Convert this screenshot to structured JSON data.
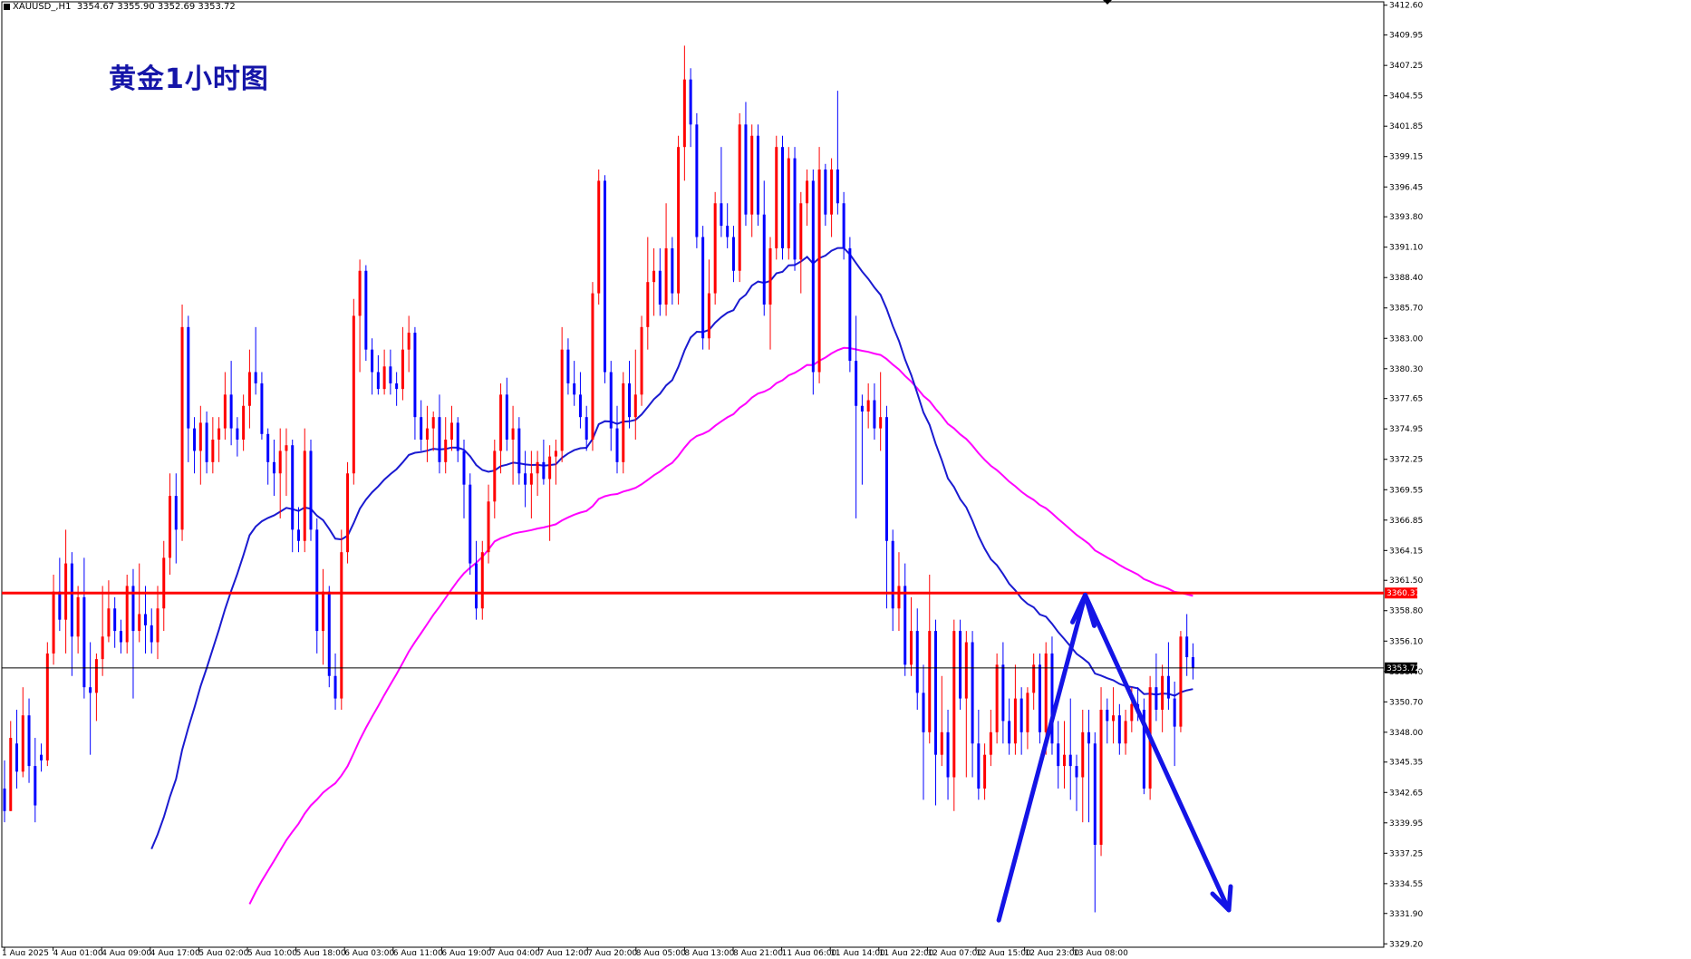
{
  "header": {
    "symbol": "XAUUSD_,H1",
    "ohlc": "3354.67 3355.90 3352.69 3353.72"
  },
  "annotation_title": "黄金1小时图",
  "colors": {
    "background": "#ffffff",
    "bull_candle": "#ff0000",
    "bear_candle": "#0000ff",
    "ma_fast": "#1a1ad0",
    "ma_slow": "#ff00ff",
    "resistance_line": "#ff0000",
    "current_price_line": "#000000",
    "arrow": "#1414e6",
    "resistance_tag": "#ff0000",
    "price_tag": "#000000"
  },
  "chart_data": {
    "type": "candlestick",
    "y_ticks": [
      "3412.60",
      "3409.95",
      "3407.25",
      "3404.55",
      "3401.85",
      "3399.15",
      "3396.45",
      "3393.80",
      "3391.10",
      "3388.40",
      "3385.70",
      "3383.00",
      "3380.30",
      "3377.65",
      "3374.95",
      "3372.25",
      "3369.55",
      "3366.85",
      "3364.15",
      "3361.50",
      "3358.80",
      "3356.10",
      "3353.40",
      "3350.70",
      "3348.00",
      "3345.35",
      "3342.65",
      "3339.95",
      "3337.25",
      "3334.55",
      "3331.90",
      "3329.20"
    ],
    "y_range": [
      3328.9,
      3412.9
    ],
    "x_labels": [
      "1 Aug 2025",
      "4 Aug 01:00",
      "4 Aug 09:00",
      "4 Aug 17:00",
      "5 Aug 02:00",
      "5 Aug 10:00",
      "5 Aug 18:00",
      "6 Aug 03:00",
      "6 Aug 11:00",
      "6 Aug 19:00",
      "7 Aug 04:00",
      "7 Aug 12:00",
      "7 Aug 20:00",
      "8 Aug 05:00",
      "8 Aug 13:00",
      "8 Aug 21:00",
      "11 Aug 06:00",
      "11 Aug 14:00",
      "11 Aug 22:00",
      "12 Aug 07:00",
      "12 Aug 15:00",
      "12 Aug 23:00",
      "13 Aug 08:00"
    ],
    "horizontal_lines": [
      {
        "name": "resistance",
        "price": 3360.37,
        "label": "3360.37"
      },
      {
        "name": "current-price",
        "price": 3353.72,
        "label": "3353.72"
      }
    ],
    "candles": [
      [
        3343.0,
        3345.5,
        3340.0,
        3341.0
      ],
      [
        3341.0,
        3349.0,
        3341.0,
        3347.5
      ],
      [
        3347.0,
        3350.0,
        3343.0,
        3344.5
      ],
      [
        3344.5,
        3352.0,
        3344.0,
        3349.5
      ],
      [
        3349.5,
        3351.0,
        3343.5,
        3345.0
      ],
      [
        3345.0,
        3347.5,
        3340.0,
        3341.5
      ],
      [
        3346.0,
        3347.0,
        3344.5,
        3345.5
      ],
      [
        3345.5,
        3356.0,
        3345.0,
        3355.0
      ],
      [
        3355.0,
        3362.0,
        3354.0,
        3360.5
      ],
      [
        3360.5,
        3363.5,
        3357.0,
        3358.0
      ],
      [
        3358.0,
        3366.0,
        3355.0,
        3363.0
      ],
      [
        3363.0,
        3364.0,
        3353.0,
        3356.5
      ],
      [
        3356.5,
        3361.0,
        3355.0,
        3360.0
      ],
      [
        3360.0,
        3363.5,
        3351.0,
        3352.0
      ],
      [
        3352.0,
        3356.0,
        3346.0,
        3351.5
      ],
      [
        3351.5,
        3355.0,
        3349.0,
        3354.5
      ],
      [
        3354.5,
        3361.0,
        3353.0,
        3356.5
      ],
      [
        3356.5,
        3361.5,
        3356.0,
        3359.0
      ],
      [
        3359.0,
        3360.0,
        3355.5,
        3357.0
      ],
      [
        3357.0,
        3358.0,
        3355.0,
        3356.0
      ],
      [
        3356.0,
        3362.0,
        3355.0,
        3361.0
      ],
      [
        3361.0,
        3362.5,
        3351.0,
        3357.0
      ],
      [
        3357.0,
        3363.0,
        3356.0,
        3358.5
      ],
      [
        3358.5,
        3361.0,
        3355.0,
        3357.5
      ],
      [
        3357.5,
        3359.0,
        3355.0,
        3356.0
      ],
      [
        3356.0,
        3361.0,
        3354.5,
        3359.0
      ],
      [
        3359.0,
        3365.0,
        3357.0,
        3363.5
      ],
      [
        3363.5,
        3371.0,
        3362.0,
        3369.0
      ],
      [
        3369.0,
        3371.0,
        3363.0,
        3366.0
      ],
      [
        3366.0,
        3386.0,
        3365.0,
        3384.0
      ],
      [
        3384.0,
        3385.0,
        3372.0,
        3375.0
      ],
      [
        3375.0,
        3376.0,
        3371.0,
        3373.0
      ],
      [
        3373.0,
        3377.0,
        3370.0,
        3375.5
      ],
      [
        3375.5,
        3376.5,
        3371.0,
        3372.0
      ],
      [
        3372.0,
        3376.0,
        3371.0,
        3374.0
      ],
      [
        3374.0,
        3376.0,
        3372.0,
        3375.0
      ],
      [
        3375.0,
        3380.0,
        3374.0,
        3378.0
      ],
      [
        3378.0,
        3381.0,
        3373.5,
        3375.0
      ],
      [
        3375.0,
        3376.0,
        3372.5,
        3374.0
      ],
      [
        3374.0,
        3378.0,
        3373.0,
        3377.0
      ],
      [
        3377.0,
        3382.0,
        3375.0,
        3380.0
      ],
      [
        3380.0,
        3384.0,
        3378.0,
        3379.0
      ],
      [
        3379.0,
        3380.0,
        3374.0,
        3374.5
      ],
      [
        3374.5,
        3375.0,
        3370.0,
        3372.0
      ],
      [
        3372.0,
        3374.0,
        3369.0,
        3371.0
      ],
      [
        3371.0,
        3375.0,
        3367.0,
        3373.0
      ],
      [
        3373.0,
        3375.0,
        3369.0,
        3373.5
      ],
      [
        3373.5,
        3374.0,
        3364.0,
        3366.0
      ],
      [
        3366.0,
        3368.0,
        3364.0,
        3365.0
      ],
      [
        3365.0,
        3375.0,
        3364.0,
        3373.0
      ],
      [
        3373.0,
        3374.0,
        3365.0,
        3366.0
      ],
      [
        3366.0,
        3367.0,
        3355.0,
        3357.0
      ],
      [
        3357.0,
        3362.5,
        3354.0,
        3360.5
      ],
      [
        3360.5,
        3361.0,
        3352.0,
        3353.0
      ],
      [
        3353.0,
        3355.0,
        3350.0,
        3351.0
      ],
      [
        3351.0,
        3366.0,
        3350.0,
        3364.0
      ],
      [
        3364.0,
        3372.0,
        3363.0,
        3371.0
      ],
      [
        3371.0,
        3386.5,
        3370.0,
        3385.0
      ],
      [
        3385.0,
        3390.0,
        3380.0,
        3389.0
      ],
      [
        3389.0,
        3389.5,
        3381.0,
        3382.0
      ],
      [
        3382.0,
        3383.0,
        3378.0,
        3380.0
      ],
      [
        3380.0,
        3381.5,
        3378.0,
        3378.5
      ],
      [
        3378.5,
        3382.0,
        3378.0,
        3380.5
      ],
      [
        3380.5,
        3382.0,
        3378.0,
        3379.0
      ],
      [
        3379.0,
        3380.0,
        3377.0,
        3378.5
      ],
      [
        3378.5,
        3384.0,
        3377.5,
        3382.0
      ],
      [
        3382.0,
        3385.0,
        3380.0,
        3383.5
      ],
      [
        3383.5,
        3384.0,
        3374.0,
        3376.0
      ],
      [
        3376.0,
        3377.5,
        3373.0,
        3374.0
      ],
      [
        3374.0,
        3377.0,
        3372.0,
        3375.0
      ],
      [
        3375.0,
        3376.5,
        3373.0,
        3376.0
      ],
      [
        3376.0,
        3378.0,
        3371.0,
        3372.0
      ],
      [
        3372.0,
        3376.0,
        3371.0,
        3374.0
      ],
      [
        3374.0,
        3377.0,
        3373.0,
        3375.5
      ],
      [
        3375.5,
        3376.0,
        3372.0,
        3373.0
      ],
      [
        3373.0,
        3374.0,
        3367.0,
        3370.0
      ],
      [
        3370.0,
        3371.0,
        3362.0,
        3363.0
      ],
      [
        3363.0,
        3365.0,
        3358.0,
        3359.0
      ],
      [
        3359.0,
        3365.0,
        3358.0,
        3364.0
      ],
      [
        3364.0,
        3370.0,
        3363.0,
        3368.5
      ],
      [
        3368.5,
        3374.0,
        3367.0,
        3373.0
      ],
      [
        3373.0,
        3379.0,
        3371.0,
        3378.0
      ],
      [
        3378.0,
        3379.5,
        3373.0,
        3374.0
      ],
      [
        3374.0,
        3377.0,
        3370.0,
        3375.0
      ],
      [
        3375.0,
        3376.0,
        3370.0,
        3371.0
      ],
      [
        3371.0,
        3373.0,
        3368.0,
        3370.0
      ],
      [
        3370.0,
        3373.0,
        3367.0,
        3371.0
      ],
      [
        3371.0,
        3373.0,
        3369.0,
        3372.0
      ],
      [
        3372.0,
        3374.0,
        3370.0,
        3370.5
      ],
      [
        3370.5,
        3373.5,
        3365.0,
        3372.5
      ],
      [
        3372.5,
        3374.0,
        3370.0,
        3373.0
      ],
      [
        3373.0,
        3384.0,
        3372.0,
        3382.0
      ],
      [
        3382.0,
        3383.0,
        3378.0,
        3379.0
      ],
      [
        3379.0,
        3381.0,
        3377.0,
        3378.0
      ],
      [
        3378.0,
        3380.0,
        3375.0,
        3376.0
      ],
      [
        3376.0,
        3377.0,
        3373.0,
        3374.0
      ],
      [
        3374.0,
        3388.0,
        3373.0,
        3387.0
      ],
      [
        3387.0,
        3398.0,
        3386.0,
        3397.0
      ],
      [
        3397.0,
        3397.5,
        3379.0,
        3380.0
      ],
      [
        3380.0,
        3381.0,
        3373.0,
        3375.0
      ],
      [
        3375.0,
        3377.0,
        3371.0,
        3372.0
      ],
      [
        3372.0,
        3380.0,
        3371.0,
        3379.0
      ],
      [
        3379.0,
        3381.0,
        3375.0,
        3376.0
      ],
      [
        3376.0,
        3382.0,
        3374.0,
        3378.0
      ],
      [
        3378.0,
        3385.0,
        3377.0,
        3384.0
      ],
      [
        3384.0,
        3392.0,
        3382.0,
        3388.0
      ],
      [
        3388.0,
        3391.0,
        3385.0,
        3389.0
      ],
      [
        3389.0,
        3391.0,
        3385.0,
        3386.0
      ],
      [
        3386.0,
        3395.0,
        3385.0,
        3391.0
      ],
      [
        3391.0,
        3392.0,
        3386.0,
        3387.0
      ],
      [
        3387.0,
        3401.0,
        3386.0,
        3400.0
      ],
      [
        3400.0,
        3409.0,
        3397.0,
        3406.0
      ],
      [
        3406.0,
        3407.0,
        3400.0,
        3402.0
      ],
      [
        3402.0,
        3403.0,
        3391.0,
        3392.0
      ],
      [
        3392.0,
        3393.0,
        3382.0,
        3383.0
      ],
      [
        3383.0,
        3390.0,
        3382.0,
        3387.0
      ],
      [
        3387.0,
        3396.0,
        3386.0,
        3395.0
      ],
      [
        3395.0,
        3400.0,
        3392.0,
        3393.0
      ],
      [
        3393.0,
        3395.0,
        3391.0,
        3392.0
      ],
      [
        3392.0,
        3393.0,
        3388.0,
        3389.0
      ],
      [
        3389.0,
        3403.0,
        3388.0,
        3402.0
      ],
      [
        3402.0,
        3404.0,
        3393.0,
        3394.0
      ],
      [
        3394.0,
        3402.0,
        3392.0,
        3401.0
      ],
      [
        3401.0,
        3402.0,
        3393.0,
        3394.0
      ],
      [
        3394.0,
        3397.0,
        3385.0,
        3386.0
      ],
      [
        3386.0,
        3392.0,
        3382.0,
        3391.0
      ],
      [
        3391.0,
        3401.0,
        3390.0,
        3400.0
      ],
      [
        3400.0,
        3401.0,
        3390.0,
        3391.0
      ],
      [
        3391.0,
        3400.0,
        3390.0,
        3399.0
      ],
      [
        3399.0,
        3400.0,
        3389.0,
        3390.0
      ],
      [
        3390.0,
        3396.0,
        3387.0,
        3395.0
      ],
      [
        3395.0,
        3398.0,
        3393.0,
        3397.0
      ],
      [
        3397.0,
        3398.0,
        3378.0,
        3380.0
      ],
      [
        3380.0,
        3400.0,
        3379.0,
        3398.0
      ],
      [
        3398.0,
        3398.5,
        3393.0,
        3394.0
      ],
      [
        3394.0,
        3399.0,
        3392.0,
        3398.0
      ],
      [
        3398.0,
        3405.0,
        3394.0,
        3395.0
      ],
      [
        3395.0,
        3396.0,
        3390.0,
        3391.0
      ],
      [
        3391.0,
        3392.0,
        3380.0,
        3381.0
      ],
      [
        3381.0,
        3385.0,
        3367.0,
        3377.0
      ],
      [
        3377.0,
        3378.0,
        3370.0,
        3376.5
      ],
      [
        3376.5,
        3379.0,
        3375.0,
        3377.5
      ],
      [
        3377.5,
        3379.0,
        3374.0,
        3375.0
      ],
      [
        3375.0,
        3380.0,
        3373.0,
        3376.0
      ],
      [
        3376.0,
        3377.0,
        3359.0,
        3365.0
      ],
      [
        3365.0,
        3366.0,
        3357.0,
        3359.0
      ],
      [
        3359.0,
        3364.0,
        3357.0,
        3361.0
      ],
      [
        3361.0,
        3363.0,
        3353.0,
        3354.0
      ],
      [
        3354.0,
        3360.0,
        3353.0,
        3357.0
      ],
      [
        3357.0,
        3359.0,
        3350.0,
        3351.5
      ],
      [
        3351.5,
        3354.0,
        3342.0,
        3348.0
      ],
      [
        3348.0,
        3362.0,
        3347.0,
        3357.0
      ],
      [
        3357.0,
        3358.0,
        3341.5,
        3346.0
      ],
      [
        3346.0,
        3353.0,
        3345.0,
        3348.0
      ],
      [
        3348.0,
        3350.0,
        3342.0,
        3344.0
      ],
      [
        3344.0,
        3358.0,
        3341.0,
        3357.0
      ],
      [
        3357.0,
        3358.0,
        3350.0,
        3351.0
      ],
      [
        3351.0,
        3357.0,
        3344.0,
        3356.0
      ],
      [
        3356.0,
        3357.0,
        3344.0,
        3347.0
      ],
      [
        3347.0,
        3350.0,
        3342.0,
        3343.0
      ],
      [
        3343.0,
        3347.0,
        3342.0,
        3346.0
      ],
      [
        3346.0,
        3350.0,
        3345.0,
        3348.0
      ],
      [
        3348.0,
        3355.0,
        3347.0,
        3354.0
      ],
      [
        3354.0,
        3356.0,
        3347.0,
        3349.0
      ],
      [
        3349.0,
        3351.0,
        3346.0,
        3347.0
      ],
      [
        3347.0,
        3354.0,
        3346.0,
        3351.0
      ],
      [
        3351.0,
        3352.0,
        3346.0,
        3348.0
      ],
      [
        3348.0,
        3352.0,
        3346.5,
        3351.5
      ],
      [
        3351.5,
        3355.0,
        3350.0,
        3354.0
      ],
      [
        3354.0,
        3355.0,
        3347.0,
        3348.0
      ],
      [
        3348.0,
        3356.0,
        3346.0,
        3355.0
      ],
      [
        3355.0,
        3356.5,
        3346.0,
        3347.0
      ],
      [
        3347.0,
        3349.0,
        3343.0,
        3345.0
      ],
      [
        3345.0,
        3349.0,
        3343.0,
        3346.0
      ],
      [
        3346.0,
        3351.0,
        3342.0,
        3345.0
      ],
      [
        3345.0,
        3346.0,
        3341.0,
        3344.0
      ],
      [
        3344.0,
        3350.0,
        3340.0,
        3348.0
      ],
      [
        3348.0,
        3350.0,
        3340.0,
        3347.0
      ],
      [
        3347.0,
        3348.0,
        3332.0,
        3338.0
      ],
      [
        3338.0,
        3352.0,
        3337.0,
        3350.0
      ],
      [
        3350.0,
        3351.0,
        3347.0,
        3349.0
      ],
      [
        3349.0,
        3352.0,
        3347.0,
        3349.5
      ],
      [
        3349.5,
        3350.5,
        3346.0,
        3347.0
      ],
      [
        3347.0,
        3350.0,
        3346.0,
        3349.0
      ],
      [
        3349.0,
        3352.0,
        3348.0,
        3350.5
      ],
      [
        3350.5,
        3352.0,
        3349.0,
        3350.0
      ],
      [
        3350.0,
        3351.0,
        3342.5,
        3343.0
      ],
      [
        3343.0,
        3353.0,
        3342.0,
        3352.0
      ],
      [
        3352.0,
        3355.0,
        3349.0,
        3350.0
      ],
      [
        3350.0,
        3354.0,
        3348.0,
        3353.0
      ],
      [
        3353.0,
        3356.0,
        3350.0,
        3351.0
      ],
      [
        3351.0,
        3352.5,
        3345.0,
        3348.5
      ],
      [
        3348.5,
        3357.0,
        3348.0,
        3356.5
      ],
      [
        3356.5,
        3358.5,
        3353.0,
        3354.67
      ],
      [
        3354.67,
        3355.9,
        3352.69,
        3353.72
      ]
    ]
  }
}
